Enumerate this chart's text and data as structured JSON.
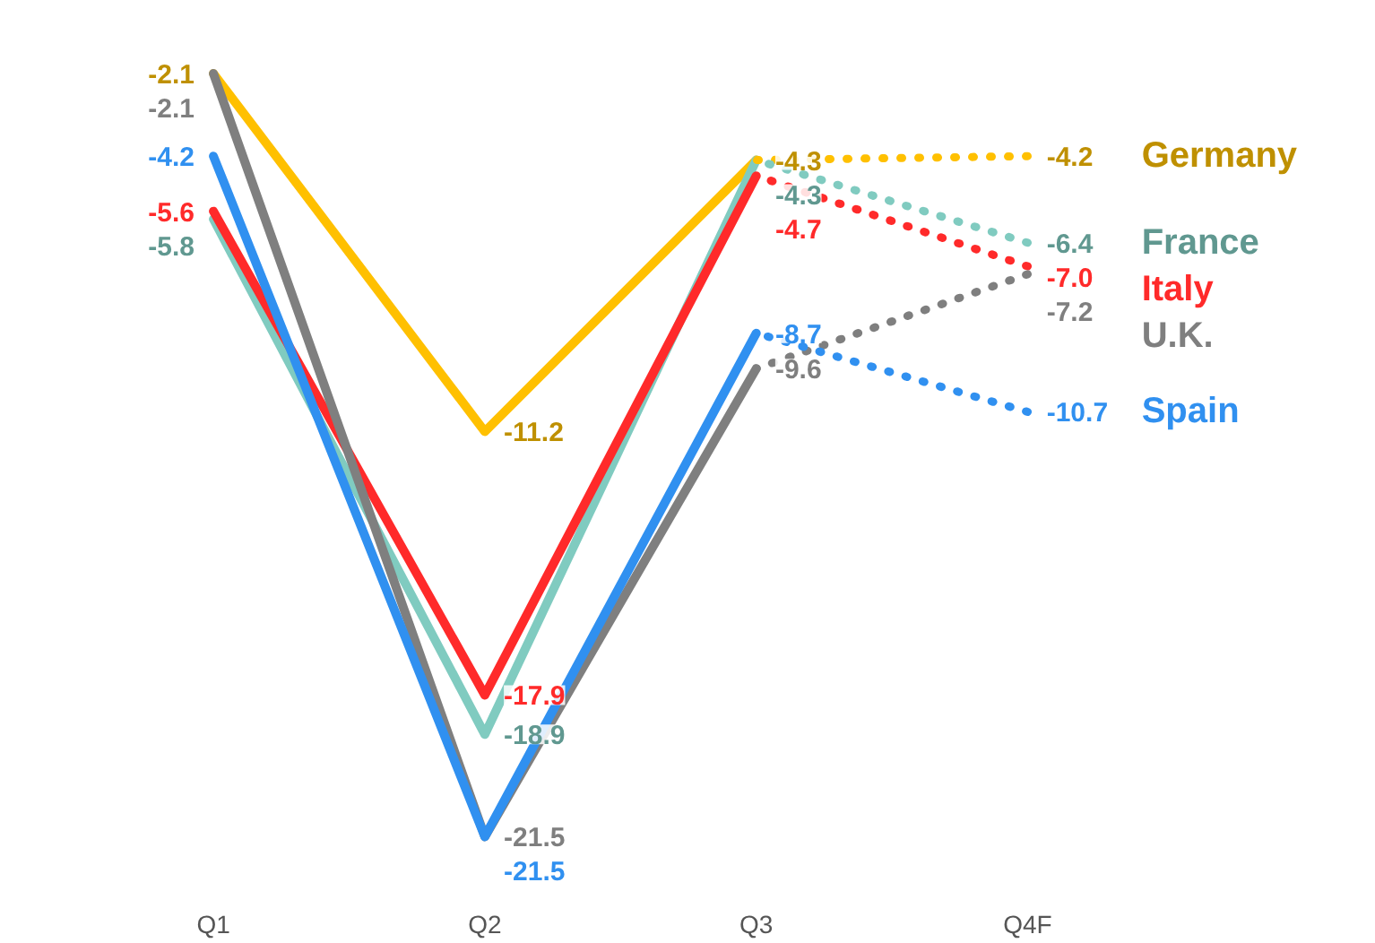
{
  "chart_data": {
    "type": "line",
    "categories": [
      "Q1",
      "Q2",
      "Q3",
      "Q4F"
    ],
    "grid": false,
    "tick_labels": "x",
    "series": [
      {
        "color": "#ffc000",
        "line_style": "solid",
        "values": [
          -2.1,
          -11.2,
          -4.3,
          null
        ],
        "value_labels": [
          "-2.1",
          "-11.2",
          "-4.3",
          null
        ]
      },
      {
        "color": "#80cbc0",
        "line_style": "solid",
        "values": [
          -5.8,
          -18.9,
          -4.3,
          null
        ],
        "value_labels": [
          "-5.8",
          "-18.9",
          "-4.3",
          null
        ]
      },
      {
        "color": "#ff2a2a",
        "line_style": "solid",
        "values": [
          -5.6,
          -17.9,
          -4.7,
          null
        ],
        "value_labels": [
          "-5.6",
          "-17.9",
          "-4.7",
          null
        ]
      },
      {
        "color": "#7f7f7f",
        "line_style": "solid",
        "values": [
          -2.1,
          -21.5,
          -9.6,
          null
        ],
        "value_labels": [
          "-2.1",
          "-21.5",
          "-9.6",
          null
        ]
      },
      {
        "color": "#3090f0",
        "line_style": "solid",
        "values": [
          -4.2,
          -21.5,
          -8.7,
          null
        ],
        "value_labels": [
          "-4.2",
          "-21.5",
          "-8.7",
          null
        ]
      },
      {
        "name": "Germany",
        "color": "#ffc000",
        "line_style": "dotted",
        "values": [
          null,
          null,
          -4.3,
          -4.2
        ],
        "value_labels": [
          null,
          null,
          null,
          "-4.2"
        ]
      },
      {
        "name": "France",
        "color": "#80cbc0",
        "line_style": "dotted",
        "values": [
          null,
          null,
          -4.3,
          -6.4
        ],
        "value_labels": [
          null,
          null,
          null,
          "-6.4"
        ]
      },
      {
        "name": "Italy",
        "color": "#ff2a2a",
        "line_style": "dotted",
        "values": [
          null,
          null,
          -4.7,
          -7.0
        ],
        "value_labels": [
          null,
          null,
          null,
          "-7.0"
        ]
      },
      {
        "name": "U.K.",
        "color": "#7f7f7f",
        "line_style": "dotted",
        "values": [
          null,
          null,
          -9.6,
          -7.2
        ],
        "value_labels": [
          null,
          null,
          null,
          "-7.2"
        ]
      },
      {
        "name": "Spain",
        "color": "#3090f0",
        "line_style": "dotted",
        "values": [
          null,
          null,
          -8.7,
          -10.7
        ],
        "value_labels": [
          null,
          null,
          null,
          "-10.7"
        ]
      }
    ]
  }
}
